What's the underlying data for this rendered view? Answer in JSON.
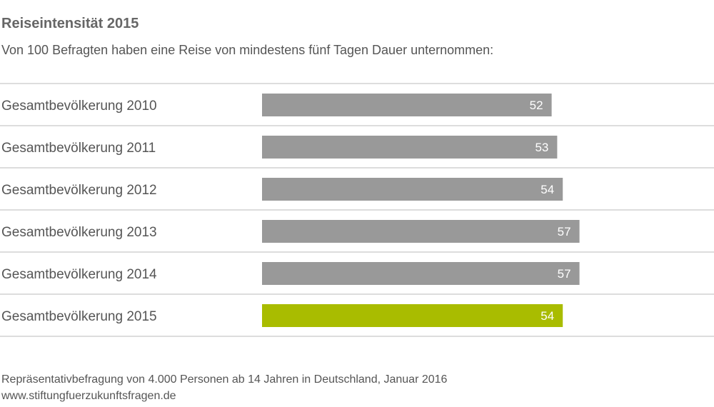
{
  "chart_data": {
    "type": "bar",
    "orientation": "horizontal",
    "title": "Reiseintensität 2015",
    "subtitle": "Von 100 Befragten haben eine Reise von mindestens fünf Tagen Dauer unternommen:",
    "categories": [
      "Gesamtbevölkerung 2010",
      "Gesamtbevölkerung 2011",
      "Gesamtbevölkerung 2012",
      "Gesamtbevölkerung 2013",
      "Gesamtbevölkerung 2014",
      "Gesamtbevölkerung 2015"
    ],
    "values": [
      52,
      53,
      54,
      57,
      57,
      54
    ],
    "xlim": [
      0,
      100
    ],
    "xlabel": "",
    "ylabel": "",
    "grid": false,
    "colors": {
      "default": "#999999",
      "highlight": "#a9bc00",
      "label": "#ffffff",
      "divider": "#dddddd",
      "category_text": "#555555"
    },
    "highlight_index": 5
  },
  "footer": {
    "source": "Repräsentativbefragung von 4.000 Personen ab 14 Jahren in Deutschland, Januar 2016",
    "url": "www.stiftungfuerzukunftsfragen.de"
  }
}
